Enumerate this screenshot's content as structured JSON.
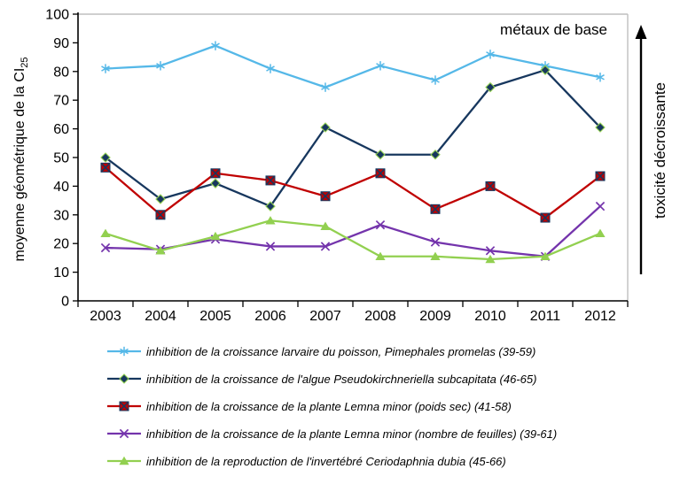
{
  "chart_data": {
    "type": "line",
    "annotation": "métaux de base",
    "right_label": "toxicité décroissante",
    "ylabel": "moyenne géométrique de la CI",
    "ylabel_sub": "25",
    "ylim": [
      0,
      100
    ],
    "ytick_interval": 10,
    "grid": false,
    "legend_position": "bottom",
    "categories": [
      "2003",
      "2004",
      "2005",
      "2006",
      "2007",
      "2008",
      "2009",
      "2010",
      "2011",
      "2012"
    ],
    "series": [
      {
        "name": "inhibition de la croissance larvaire du poisson, Pimephales promelas (39-59)",
        "color": "#55B8E8",
        "marker": "asterisk",
        "values": [
          81,
          82,
          89,
          81,
          74.5,
          82,
          77,
          86,
          82,
          78
        ]
      },
      {
        "name": "inhibition de la croissance de l'algue Pseudokirchneriella subcapitata (46-65)",
        "color": "#17375E",
        "marker": "diamond",
        "marker_edge": "#92D050",
        "values": [
          50,
          35.5,
          41,
          33,
          60.5,
          51,
          51,
          74.5,
          80.5,
          60.5
        ]
      },
      {
        "name": "inhibition de la croissance de la plante Lemna minor (poids sec) (41-58)",
        "color": "#C00000",
        "marker": "square-x",
        "marker_edge": "#17375E",
        "values": [
          46.5,
          30,
          44.5,
          42,
          36.5,
          44.5,
          32,
          40,
          29,
          43.5
        ]
      },
      {
        "name": "inhibition de la croissance de la plante Lemna minor (nombre de feuilles) (39-61)",
        "color": "#7434AC",
        "marker": "x",
        "values": [
          18.5,
          18,
          21.5,
          19,
          19,
          26.5,
          20.5,
          17.5,
          15.5,
          33
        ]
      },
      {
        "name": "inhibition de la reproduction de l'invertébré Ceriodaphnia dubia (45-66)",
        "color": "#92D050",
        "marker": "triangle",
        "values": [
          23.5,
          17.5,
          22.5,
          28,
          26,
          15.5,
          15.5,
          14.5,
          15.5,
          23.5
        ]
      }
    ],
    "colors": {
      "plot_border": "#BFBFBF",
      "axis": "#000000",
      "text": "#000000"
    }
  }
}
